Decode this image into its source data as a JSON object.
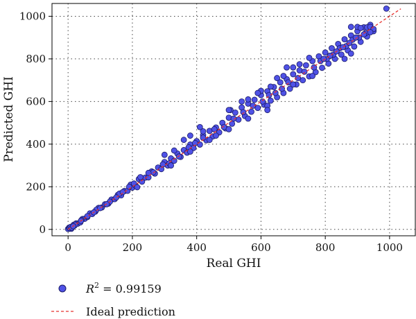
{
  "chart_data": {
    "type": "scatter",
    "xlabel": "Real GHI",
    "ylabel": "Predicted GHI",
    "xlim": [
      -50,
      1080
    ],
    "ylim": [
      -30,
      1060
    ],
    "xticks": [
      0,
      200,
      400,
      600,
      800,
      1000
    ],
    "yticks": [
      0,
      200,
      400,
      600,
      800,
      1000
    ],
    "grid": true,
    "legend_placement": "bottom",
    "series": [
      {
        "label_prefix": "R",
        "label_superscript": "2",
        "label_value": " = 0.99159",
        "marker": "circle",
        "color": "#4f52e6",
        "edge_color": "#1a1a66",
        "points": [
          [
            0,
            2
          ],
          [
            3,
            8
          ],
          [
            6,
            4
          ],
          [
            10,
            12
          ],
          [
            14,
            11
          ],
          [
            20,
            18
          ],
          [
            25,
            28
          ],
          [
            30,
            27
          ],
          [
            38,
            33
          ],
          [
            45,
            49
          ],
          [
            52,
            50
          ],
          [
            60,
            58
          ],
          [
            68,
            75
          ],
          [
            75,
            72
          ],
          [
            85,
            84
          ],
          [
            95,
            101
          ],
          [
            105,
            103
          ],
          [
            115,
            118
          ],
          [
            125,
            121
          ],
          [
            135,
            140
          ],
          [
            145,
            142
          ],
          [
            155,
            162
          ],
          [
            165,
            160
          ],
          [
            175,
            180
          ],
          [
            185,
            181
          ],
          [
            195,
            210
          ],
          [
            200,
            196
          ],
          [
            210,
            205
          ],
          [
            220,
            236
          ],
          [
            230,
            224
          ],
          [
            240,
            243
          ],
          [
            250,
            244
          ],
          [
            260,
            272
          ],
          [
            270,
            262
          ],
          [
            280,
            290
          ],
          [
            290,
            283
          ],
          [
            300,
            316
          ],
          [
            310,
            300
          ],
          [
            320,
            333
          ],
          [
            330,
            322
          ],
          [
            340,
            356
          ],
          [
            350,
            340
          ],
          [
            360,
            372
          ],
          [
            370,
            360
          ],
          [
            380,
            398
          ],
          [
            390,
            382
          ],
          [
            400,
            414
          ],
          [
            410,
            398
          ],
          [
            420,
            442
          ],
          [
            430,
            418
          ],
          [
            440,
            462
          ],
          [
            450,
            436
          ],
          [
            460,
            478
          ],
          [
            470,
            455
          ],
          [
            480,
            500
          ],
          [
            490,
            474
          ],
          [
            500,
            524
          ],
          [
            510,
            496
          ],
          [
            520,
            548
          ],
          [
            530,
            515
          ],
          [
            540,
            572
          ],
          [
            550,
            532
          ],
          [
            560,
            590
          ],
          [
            570,
            552
          ],
          [
            580,
            608
          ],
          [
            590,
            570
          ],
          [
            600,
            630
          ],
          [
            610,
            585
          ],
          [
            620,
            648
          ],
          [
            630,
            604
          ],
          [
            640,
            668
          ],
          [
            650,
            620
          ],
          [
            660,
            690
          ],
          [
            670,
            640
          ],
          [
            680,
            705
          ],
          [
            690,
            660
          ],
          [
            700,
            728
          ],
          [
            710,
            680
          ],
          [
            720,
            746
          ],
          [
            730,
            700
          ],
          [
            740,
            770
          ],
          [
            750,
            718
          ],
          [
            760,
            790
          ],
          [
            770,
            738
          ],
          [
            780,
            812
          ],
          [
            790,
            758
          ],
          [
            800,
            830
          ],
          [
            810,
            778
          ],
          [
            820,
            850
          ],
          [
            830,
            800
          ],
          [
            840,
            870
          ],
          [
            850,
            820
          ],
          [
            860,
            892
          ],
          [
            870,
            840
          ],
          [
            880,
            910
          ],
          [
            890,
            858
          ],
          [
            900,
            930
          ],
          [
            910,
            880
          ],
          [
            920,
            948
          ],
          [
            930,
            905
          ],
          [
            940,
            960
          ],
          [
            950,
            930
          ],
          [
            990,
            1036
          ],
          [
            10,
            3
          ],
          [
            18,
            22
          ],
          [
            42,
            44
          ],
          [
            88,
            92
          ],
          [
            130,
            130
          ],
          [
            160,
            168
          ],
          [
            205,
            215
          ],
          [
            215,
            198
          ],
          [
            265,
            268
          ],
          [
            295,
            305
          ],
          [
            315,
            310
          ],
          [
            345,
            342
          ],
          [
            375,
            385
          ],
          [
            395,
            405
          ],
          [
            420,
            430
          ],
          [
            455,
            470
          ],
          [
            485,
            480
          ],
          [
            515,
            520
          ],
          [
            545,
            550
          ],
          [
            575,
            580
          ],
          [
            605,
            600
          ],
          [
            625,
            630
          ],
          [
            645,
            640
          ],
          [
            665,
            660
          ],
          [
            685,
            690
          ],
          [
            715,
            710
          ],
          [
            735,
            740
          ],
          [
            765,
            760
          ],
          [
            785,
            790
          ],
          [
            805,
            800
          ],
          [
            825,
            820
          ],
          [
            845,
            850
          ],
          [
            865,
            860
          ],
          [
            885,
            890
          ],
          [
            905,
            900
          ],
          [
            925,
            920
          ],
          [
            945,
            940
          ],
          [
            380,
            440
          ],
          [
            460,
            440
          ],
          [
            505,
            560
          ],
          [
            540,
            600
          ],
          [
            600,
            650
          ],
          [
            650,
            710
          ],
          [
            700,
            760
          ],
          [
            750,
            805
          ],
          [
            330,
            370
          ],
          [
            420,
            460
          ],
          [
            860,
            800
          ],
          [
            880,
            825
          ],
          [
            760,
            720
          ],
          [
            700,
            680
          ],
          [
            620,
            580
          ],
          [
            560,
            520
          ],
          [
            500,
            470
          ],
          [
            440,
            420
          ],
          [
            380,
            365
          ],
          [
            320,
            300
          ],
          [
            560,
            610
          ],
          [
            590,
            640
          ],
          [
            630,
            670
          ],
          [
            670,
            720
          ],
          [
            720,
            775
          ],
          [
            620,
            560
          ],
          [
            880,
            950
          ],
          [
            900,
            950
          ],
          [
            910,
            945
          ],
          [
            930,
            948
          ],
          [
            940,
            950
          ],
          [
            950,
            940
          ],
          [
            940,
            925
          ],
          [
            920,
            915
          ],
          [
            895,
            900
          ],
          [
            875,
            875
          ],
          [
            855,
            855
          ],
          [
            835,
            835
          ],
          [
            815,
            815
          ],
          [
            795,
            800
          ],
          [
            680,
            760
          ],
          [
            500,
            560
          ],
          [
            410,
            480
          ],
          [
            360,
            420
          ],
          [
            300,
            350
          ],
          [
            250,
            265
          ],
          [
            225,
            245
          ],
          [
            190,
            200
          ],
          [
            170,
            175
          ],
          [
            150,
            150
          ],
          [
            120,
            118
          ],
          [
            100,
            100
          ],
          [
            80,
            80
          ],
          [
            60,
            62
          ],
          [
            40,
            40
          ],
          [
            22,
            22
          ],
          [
            5,
            6
          ],
          [
            8,
            12
          ],
          [
            12,
            8
          ],
          [
            16,
            15
          ]
        ]
      },
      {
        "label": "Ideal prediction",
        "line_style": "dashed",
        "color": "#e8322e",
        "x": [
          0,
          1035
        ],
        "y": [
          0,
          1035
        ]
      }
    ]
  }
}
